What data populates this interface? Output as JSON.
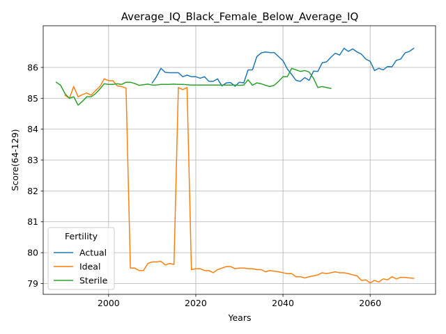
{
  "chart_data": {
    "type": "line",
    "title": "Average_IQ_Black_Female_Below_Average_IQ",
    "xlabel": "Years",
    "ylabel": "Score(64-129)",
    "xlim": [
      1985,
      2075
    ],
    "ylim": [
      78.65,
      87.35
    ],
    "xticks": [
      2000,
      2020,
      2040,
      2060
    ],
    "yticks": [
      79,
      80,
      81,
      82,
      83,
      84,
      85,
      86
    ],
    "grid": true,
    "legend": {
      "title": "Fertility",
      "location": "lower left"
    },
    "series": [
      {
        "name": "Actual",
        "color": "#1f77b4",
        "x": [
          2010,
          2011,
          2012,
          2013,
          2014,
          2015,
          2016,
          2017,
          2018,
          2019,
          2020,
          2021,
          2022,
          2023,
          2024,
          2025,
          2026,
          2027,
          2028,
          2029,
          2030,
          2031,
          2032,
          2033,
          2034,
          2035,
          2036,
          2037,
          2038,
          2039,
          2040,
          2041,
          2042,
          2043,
          2044,
          2045,
          2046,
          2047,
          2048,
          2049,
          2050,
          2051,
          2052,
          2053,
          2054,
          2055,
          2056,
          2057,
          2058,
          2059,
          2060,
          2061,
          2062,
          2063,
          2064,
          2065,
          2066,
          2067,
          2068,
          2069,
          2070
        ],
        "y": [
          85.5,
          85.7,
          85.97,
          85.84,
          85.83,
          85.83,
          85.83,
          85.7,
          85.75,
          85.7,
          85.7,
          85.65,
          85.7,
          85.55,
          85.55,
          85.63,
          85.4,
          85.5,
          85.51,
          85.39,
          85.52,
          85.5,
          85.92,
          85.92,
          86.35,
          86.47,
          86.5,
          86.48,
          86.48,
          86.35,
          86.22,
          85.95,
          85.77,
          85.58,
          85.55,
          85.67,
          85.58,
          85.88,
          85.87,
          86.15,
          86.18,
          86.33,
          86.46,
          86.4,
          86.62,
          86.52,
          86.6,
          86.5,
          86.43,
          86.27,
          86.2,
          85.9,
          85.97,
          85.92,
          86.03,
          86.02,
          86.23,
          86.27,
          86.47,
          86.52,
          86.62
        ]
      },
      {
        "name": "Ideal",
        "color": "#ff7f0e",
        "x": [
          1990,
          1991,
          1992,
          1993,
          1994,
          1995,
          1996,
          1997,
          1998,
          1999,
          2000,
          2001,
          2002,
          2003,
          2004,
          2005,
          2006,
          2007,
          2008,
          2009,
          2010,
          2011,
          2012,
          2013,
          2014,
          2015,
          2016,
          2017,
          2018,
          2019,
          2020,
          2021,
          2022,
          2023,
          2024,
          2025,
          2026,
          2027,
          2028,
          2029,
          2030,
          2031,
          2032,
          2033,
          2034,
          2035,
          2036,
          2037,
          2038,
          2039,
          2040,
          2041,
          2042,
          2043,
          2044,
          2045,
          2046,
          2047,
          2048,
          2049,
          2050,
          2051,
          2052,
          2053,
          2054,
          2055,
          2056,
          2057,
          2058,
          2059,
          2060,
          2061,
          2062,
          2063,
          2064,
          2065,
          2066,
          2067,
          2068,
          2069,
          2070
        ],
        "y": [
          85.1,
          85.0,
          85.38,
          85.05,
          85.12,
          85.17,
          85.1,
          85.25,
          85.38,
          85.63,
          85.57,
          85.57,
          85.4,
          85.38,
          85.33,
          79.5,
          79.5,
          79.42,
          79.42,
          79.65,
          79.7,
          79.7,
          79.72,
          79.6,
          79.65,
          79.62,
          85.35,
          85.28,
          85.35,
          79.45,
          79.48,
          79.48,
          79.42,
          79.42,
          79.35,
          79.45,
          79.5,
          79.55,
          79.55,
          79.48,
          79.5,
          79.5,
          79.48,
          79.48,
          79.45,
          79.45,
          79.38,
          79.42,
          79.4,
          79.38,
          79.35,
          79.32,
          79.32,
          79.22,
          79.22,
          79.18,
          79.22,
          79.25,
          79.28,
          79.35,
          79.32,
          79.35,
          79.38,
          79.35,
          79.35,
          79.32,
          79.28,
          79.25,
          79.1,
          79.12,
          79.02,
          79.1,
          79.05,
          79.15,
          79.12,
          79.22,
          79.15,
          79.2,
          79.2,
          79.18,
          79.17
        ]
      },
      {
        "name": "Sterile",
        "color": "#2ca02c",
        "x": [
          1988,
          1989,
          1990,
          1991,
          1992,
          1993,
          1994,
          1995,
          1996,
          1997,
          1998,
          1999,
          2000,
          2001,
          2002,
          2003,
          2004,
          2005,
          2006,
          2007,
          2008,
          2009,
          2010,
          2011,
          2012,
          2013,
          2014,
          2015,
          2016,
          2017,
          2018,
          2019,
          2020,
          2021,
          2022,
          2023,
          2024,
          2025,
          2026,
          2027,
          2028,
          2029,
          2030,
          2031,
          2032,
          2033,
          2034,
          2035,
          2036,
          2037,
          2038,
          2039,
          2040,
          2041,
          2042,
          2043,
          2044,
          2045,
          2046,
          2047,
          2048,
          2049,
          2050,
          2051
        ],
        "y": [
          85.52,
          85.42,
          85.15,
          85.0,
          85.05,
          84.78,
          84.9,
          85.05,
          85.05,
          85.15,
          85.3,
          85.47,
          85.45,
          85.45,
          85.47,
          85.45,
          85.52,
          85.52,
          85.48,
          85.42,
          85.44,
          85.46,
          85.43,
          85.43,
          85.45,
          85.45,
          85.45,
          85.46,
          85.45,
          85.45,
          85.44,
          85.43,
          85.43,
          85.43,
          85.43,
          85.43,
          85.43,
          85.43,
          85.43,
          85.43,
          85.43,
          85.43,
          85.42,
          85.43,
          85.6,
          85.42,
          85.5,
          85.47,
          85.42,
          85.38,
          85.42,
          85.55,
          85.7,
          85.7,
          85.97,
          85.92,
          85.87,
          85.9,
          85.85,
          85.65,
          85.35,
          85.38,
          85.35,
          85.32
        ]
      }
    ]
  }
}
